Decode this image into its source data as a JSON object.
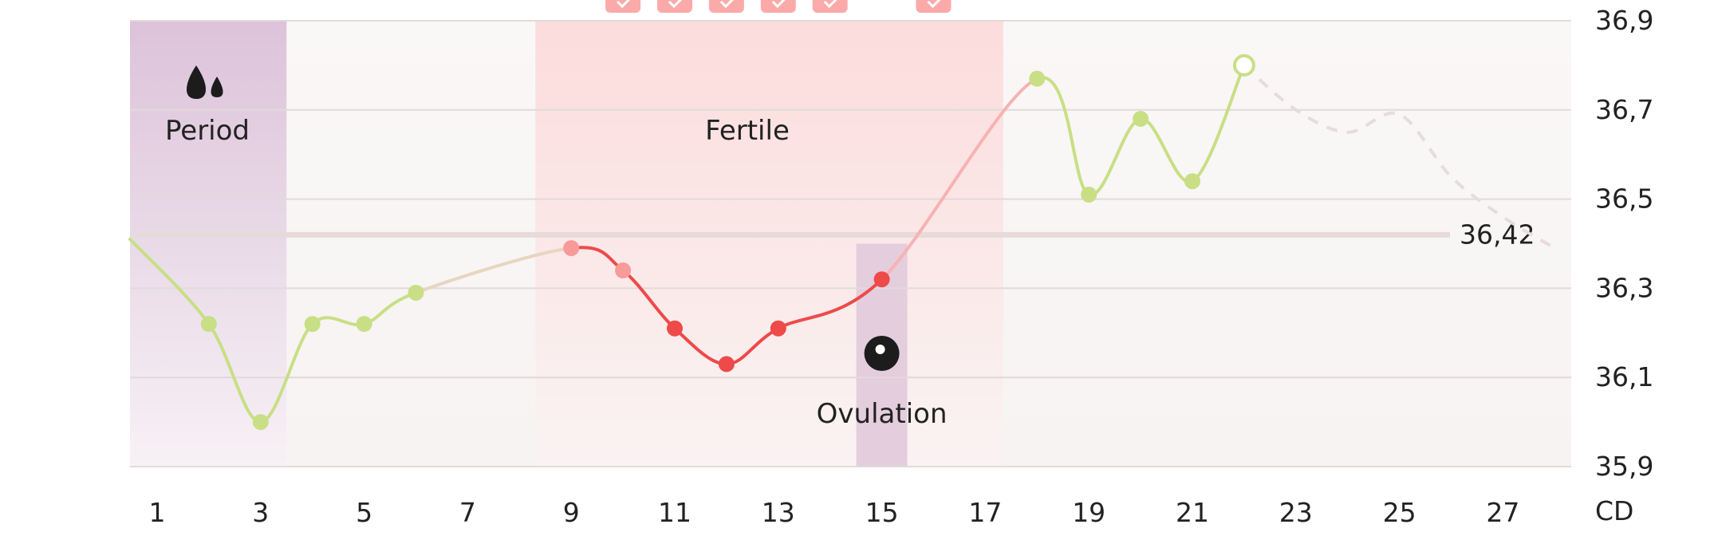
{
  "chart_data": {
    "type": "line",
    "title": "",
    "xlabel": "CD",
    "ylabel": "",
    "ylim": [
      35.9,
      36.9
    ],
    "xlim": [
      0.5,
      28.5
    ],
    "x_ticks": [
      "1",
      "3",
      "5",
      "7",
      "9",
      "11",
      "13",
      "15",
      "17",
      "19",
      "21",
      "23",
      "25",
      "27"
    ],
    "y_ticks": [
      "36,9",
      "36,7",
      "36,5",
      "36,3",
      "36,1",
      "35,9"
    ],
    "coverline": {
      "value": 36.42,
      "label": "36,42"
    },
    "phases": [
      {
        "name": "Period",
        "label": "Period",
        "start_cd": 1,
        "end_cd": 3,
        "icon": "blood-drops-icon"
      },
      {
        "name": "Fertile",
        "label": "Fertile",
        "start_cd": 8,
        "end_cd": 17,
        "icon": ""
      },
      {
        "name": "Ovulation",
        "label": "Ovulation",
        "start_cd": 15,
        "end_cd": 15,
        "icon": "ovum-icon"
      }
    ],
    "fertile_day_markers": [
      10,
      11,
      12,
      13,
      14,
      16
    ],
    "series": [
      {
        "type": "measured",
        "x": [
          2,
          3,
          4,
          5,
          6,
          9,
          10,
          11,
          12,
          13,
          15,
          18,
          19,
          20,
          21,
          22
        ],
        "y": [
          36.22,
          36.0,
          36.22,
          36.22,
          36.29,
          36.39,
          36.34,
          36.21,
          36.13,
          36.21,
          36.32,
          36.77,
          36.51,
          36.68,
          36.54,
          36.8
        ]
      },
      {
        "type": "predicted",
        "x": [
          22,
          23,
          24,
          25,
          26,
          27,
          28
        ],
        "y": [
          36.8,
          36.7,
          36.65,
          36.69,
          36.55,
          36.46,
          36.39
        ]
      }
    ],
    "colors": {
      "green": "#c8df85",
      "red": "#ee4a4a",
      "light_red": "#f7b2b2",
      "pink": "#fbaaaa",
      "period_band": "#e0c8dc",
      "fertile_band": "#fde1e1",
      "ovulation_band": "#e4cddd",
      "predicted": "#e6dcdc"
    }
  }
}
